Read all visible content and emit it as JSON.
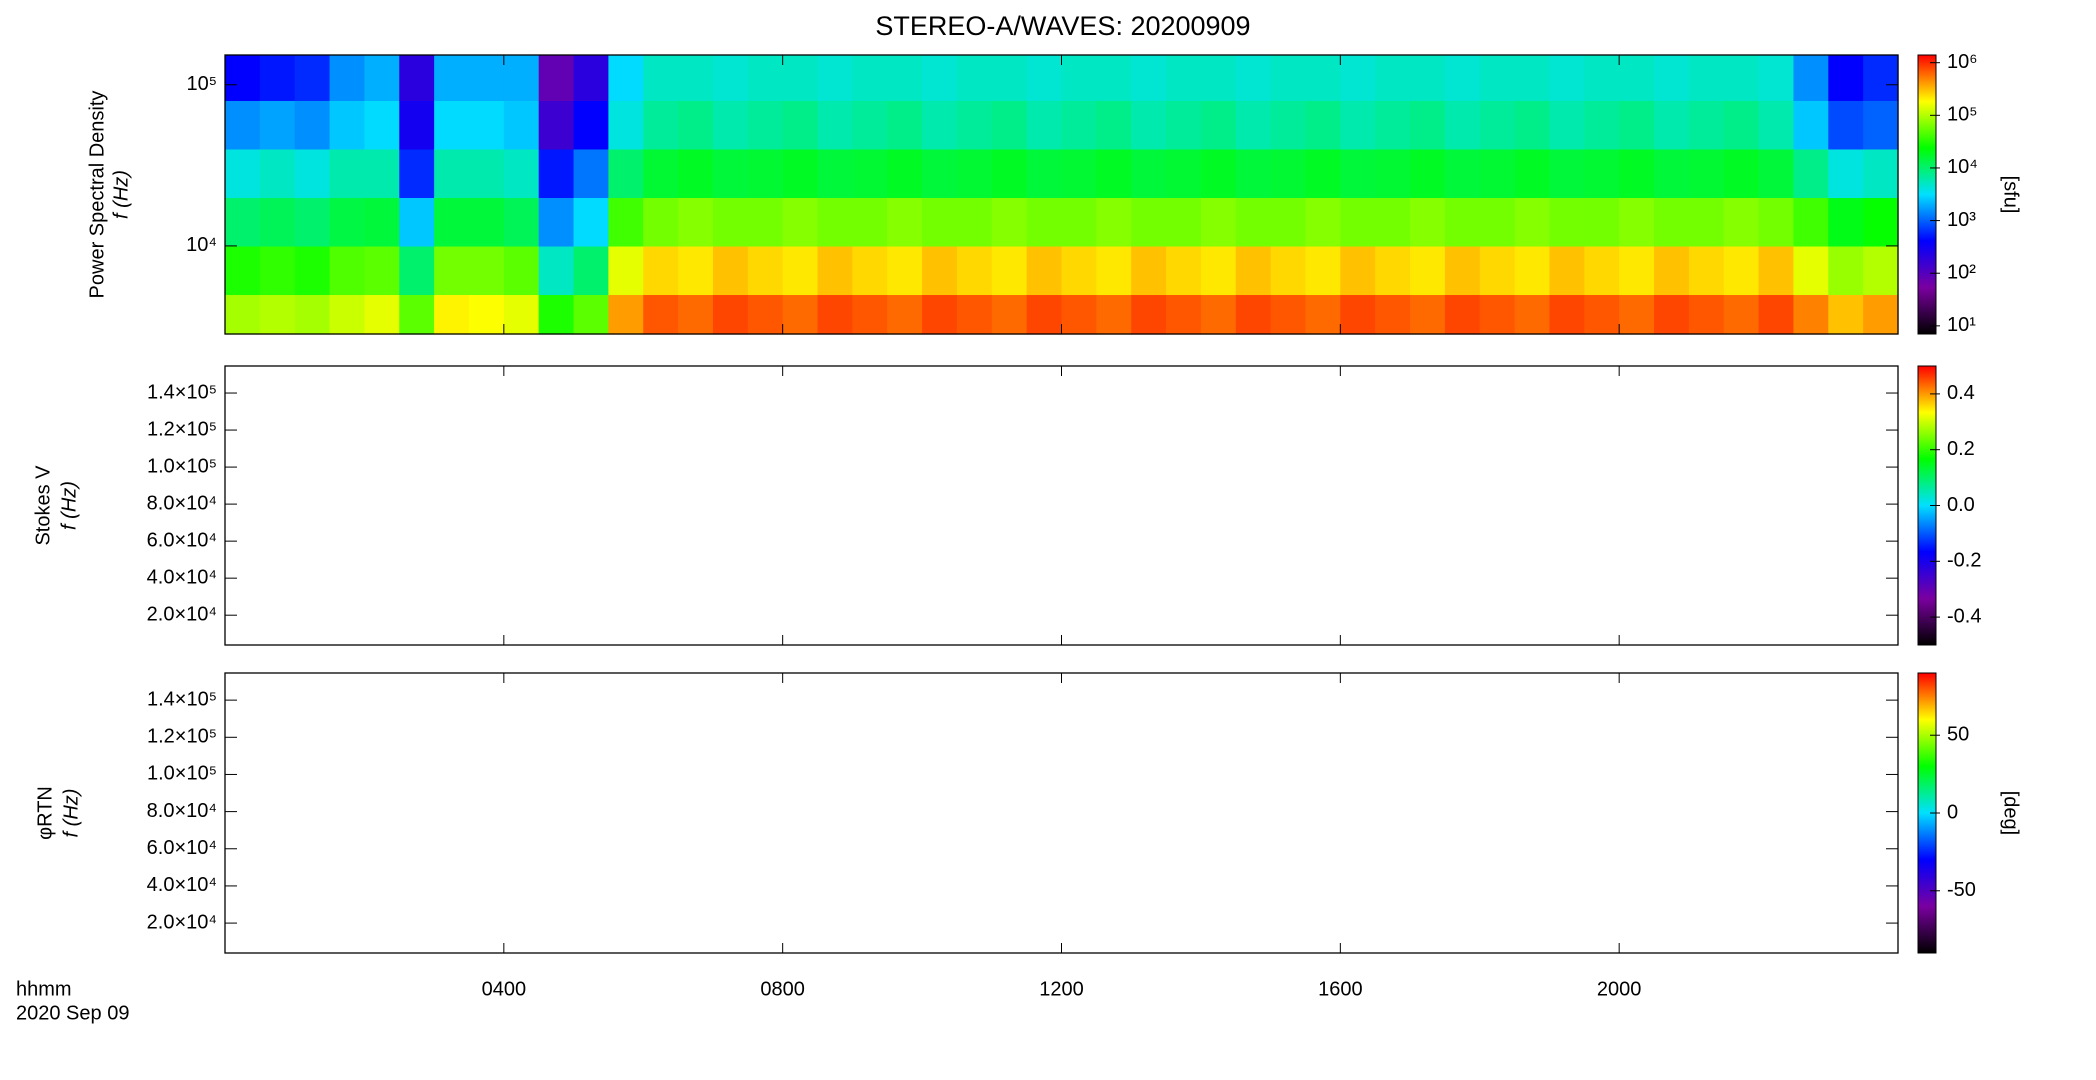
{
  "chart_data": [
    {
      "type": "heatmap",
      "title": "STEREO-A/WAVES: 20200909",
      "ylabel": [
        "Power Spectral Density",
        "f (Hz)"
      ],
      "yscale": "log",
      "xlim": [
        0,
        24
      ],
      "ylim": [
        2840,
        153000
      ],
      "yticks": [
        {
          "value": 10000,
          "label": "10⁴"
        },
        {
          "value": 100000,
          "label": "10⁵"
        }
      ],
      "x_edges": [
        0,
        0.5,
        1,
        1.5,
        2,
        2.5,
        3,
        3.5,
        4,
        4.5,
        5,
        5.5,
        6,
        6.5,
        7,
        7.5,
        8,
        8.5,
        9,
        9.5,
        10,
        10.5,
        11,
        11.5,
        12,
        12.5,
        13,
        13.5,
        14,
        14.5,
        15,
        15.5,
        16,
        16.5,
        17,
        17.5,
        18,
        18.5,
        19,
        19.5,
        20,
        20.5,
        21,
        21.5,
        22,
        22.5,
        23,
        23.5,
        24
      ],
      "y_edges": [
        2840,
        5000,
        10000,
        20000,
        40000,
        80000,
        153000
      ],
      "z": [
        [
          90000,
          30000,
          10000,
          4000,
          1500,
          400
        ],
        [
          100000,
          35000,
          12000,
          5000,
          1800,
          500
        ],
        [
          90000,
          30000,
          10000,
          4000,
          1500,
          600
        ],
        [
          120000,
          45000,
          14000,
          6000,
          2500,
          1500
        ],
        [
          150000,
          50000,
          15000,
          6000,
          3000,
          2000
        ],
        [
          50000,
          10000,
          2500,
          600,
          300,
          200
        ],
        [
          200000,
          60000,
          15000,
          6000,
          3000,
          2000
        ],
        [
          180000,
          60000,
          15000,
          6000,
          3000,
          2000
        ],
        [
          150000,
          50000,
          12000,
          5000,
          2500,
          2000
        ],
        [
          30000,
          5000,
          1500,
          500,
          150,
          80
        ],
        [
          50000,
          10000,
          3000,
          1200,
          400,
          200
        ],
        [
          400000,
          150000,
          40000,
          10000,
          4000,
          3000
        ],
        [
          700000,
          250000,
          60000,
          16000,
          7000,
          5000
        ],
        [
          600000,
          220000,
          70000,
          18000,
          8000,
          5000
        ],
        [
          800000,
          300000,
          60000,
          15000,
          6000,
          4500
        ],
        [
          700000,
          250000,
          60000,
          16000,
          7000,
          5000
        ],
        [
          600000,
          220000,
          70000,
          18000,
          8000,
          5000
        ],
        [
          800000,
          300000,
          60000,
          15000,
          6000,
          4500
        ],
        [
          700000,
          250000,
          60000,
          16000,
          7000,
          5000
        ],
        [
          600000,
          220000,
          70000,
          18000,
          8000,
          5000
        ],
        [
          800000,
          300000,
          60000,
          15000,
          6000,
          4500
        ],
        [
          700000,
          250000,
          60000,
          16000,
          7000,
          5000
        ],
        [
          600000,
          220000,
          70000,
          18000,
          8000,
          5000
        ],
        [
          800000,
          300000,
          60000,
          15000,
          6000,
          4500
        ],
        [
          700000,
          250000,
          60000,
          16000,
          7000,
          5000
        ],
        [
          600000,
          220000,
          70000,
          18000,
          8000,
          5000
        ],
        [
          800000,
          300000,
          60000,
          15000,
          6000,
          4500
        ],
        [
          700000,
          250000,
          60000,
          16000,
          7000,
          5000
        ],
        [
          600000,
          220000,
          70000,
          18000,
          8000,
          5000
        ],
        [
          800000,
          300000,
          60000,
          15000,
          6000,
          4500
        ],
        [
          700000,
          250000,
          60000,
          16000,
          7000,
          5000
        ],
        [
          600000,
          220000,
          70000,
          18000,
          8000,
          5000
        ],
        [
          800000,
          300000,
          60000,
          15000,
          6000,
          4500
        ],
        [
          700000,
          250000,
          60000,
          16000,
          7000,
          5000
        ],
        [
          600000,
          220000,
          70000,
          18000,
          8000,
          5000
        ],
        [
          800000,
          300000,
          60000,
          15000,
          6000,
          4500
        ],
        [
          700000,
          250000,
          60000,
          16000,
          7000,
          5000
        ],
        [
          600000,
          220000,
          70000,
          18000,
          8000,
          5000
        ],
        [
          800000,
          300000,
          60000,
          15000,
          6000,
          4500
        ],
        [
          700000,
          250000,
          60000,
          16000,
          7000,
          5000
        ],
        [
          600000,
          220000,
          70000,
          18000,
          8000,
          5000
        ],
        [
          800000,
          300000,
          60000,
          15000,
          6000,
          4500
        ],
        [
          700000,
          250000,
          60000,
          16000,
          7000,
          5000
        ],
        [
          600000,
          220000,
          70000,
          18000,
          8000,
          5000
        ],
        [
          800000,
          300000,
          60000,
          15000,
          6000,
          4500
        ],
        [
          500000,
          150000,
          40000,
          8000,
          2500,
          1500
        ],
        [
          300000,
          80000,
          20000,
          4000,
          800,
          400
        ],
        [
          400000,
          100000,
          25000,
          5000,
          1000,
          600
        ]
      ],
      "colormap": [
        "#000000",
        "#7a00a0",
        "#0000ff",
        "#00e0ff",
        "#00ff00",
        "#ffff00",
        "#ff0000"
      ],
      "zscale": "log",
      "zlim": [
        7,
        1400000
      ],
      "zlabel": "[sfu]",
      "zticks": [
        {
          "value": 10,
          "label": "10¹"
        },
        {
          "value": 100,
          "label": "10²"
        },
        {
          "value": 1000,
          "label": "10³"
        },
        {
          "value": 10000,
          "label": "10⁴"
        },
        {
          "value": 100000,
          "label": "10⁵"
        },
        {
          "value": 1000000,
          "label": "10⁶"
        }
      ]
    },
    {
      "type": "heatmap",
      "ylabel": [
        "Stokes V",
        "f (Hz)"
      ],
      "xlim": [
        0,
        24
      ],
      "ylim": [
        3900,
        154600
      ],
      "yticks": [
        {
          "value": 20000,
          "label": "2.0×10⁴"
        },
        {
          "value": 40000,
          "label": "4.0×10⁴"
        },
        {
          "value": 60000,
          "label": "6.0×10⁴"
        },
        {
          "value": 80000,
          "label": "8.0×10⁴"
        },
        {
          "value": 100000,
          "label": "1.0×10⁵"
        },
        {
          "value": 120000,
          "label": "1.2×10⁵"
        },
        {
          "value": 140000,
          "label": "1.4×10⁵"
        }
      ],
      "colormap": [
        "#000000",
        "#7a00a0",
        "#0000ff",
        "#00e0ff",
        "#00ff00",
        "#ffff00",
        "#ff0000"
      ],
      "zlim": [
        -0.5,
        0.5
      ],
      "zticks": [
        -0.4,
        -0.2,
        {
          "value": 0,
          "label": "0.0"
        },
        0.2,
        0.4
      ]
    },
    {
      "type": "heatmap",
      "ylabel": [
        "φRTN",
        "f (Hz)"
      ],
      "xlim": [
        0,
        24
      ],
      "ylim": [
        3900,
        154600
      ],
      "yticks": [
        {
          "value": 20000,
          "label": "2.0×10⁴"
        },
        {
          "value": 40000,
          "label": "4.0×10⁴"
        },
        {
          "value": 60000,
          "label": "6.0×10⁴"
        },
        {
          "value": 80000,
          "label": "8.0×10⁴"
        },
        {
          "value": 100000,
          "label": "1.0×10⁵"
        },
        {
          "value": 120000,
          "label": "1.2×10⁵"
        },
        {
          "value": 140000,
          "label": "1.4×10⁵"
        }
      ],
      "colormap": [
        "#000000",
        "#7a00a0",
        "#0000ff",
        "#00e0ff",
        "#00ff00",
        "#ffff00",
        "#ff0000"
      ],
      "zlim": [
        -90,
        90
      ],
      "zlabel": "[deg]",
      "zticks": [
        -50,
        0,
        50
      ],
      "xticks": [
        {
          "value": 4,
          "label": "0400"
        },
        {
          "value": 8,
          "label": "0800"
        },
        {
          "value": 12,
          "label": "1200"
        },
        {
          "value": 16,
          "label": "1600"
        },
        {
          "value": 20,
          "label": "2000"
        }
      ],
      "xlabel": "hhmm",
      "xlabel2": "2020 Sep 09"
    }
  ]
}
